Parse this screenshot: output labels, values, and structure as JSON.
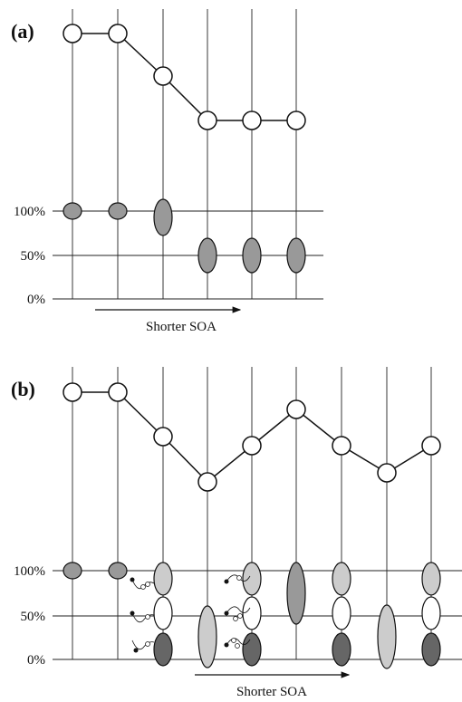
{
  "panels": [
    {
      "label": "(a)",
      "axis_labels": [
        "100%",
        "50%",
        "0%"
      ],
      "arrow_label": "Shorter SOA"
    },
    {
      "label": "(b)",
      "axis_labels": [
        "100%",
        "50%",
        "0%"
      ],
      "arrow_label": "Shorter SOA"
    }
  ]
}
